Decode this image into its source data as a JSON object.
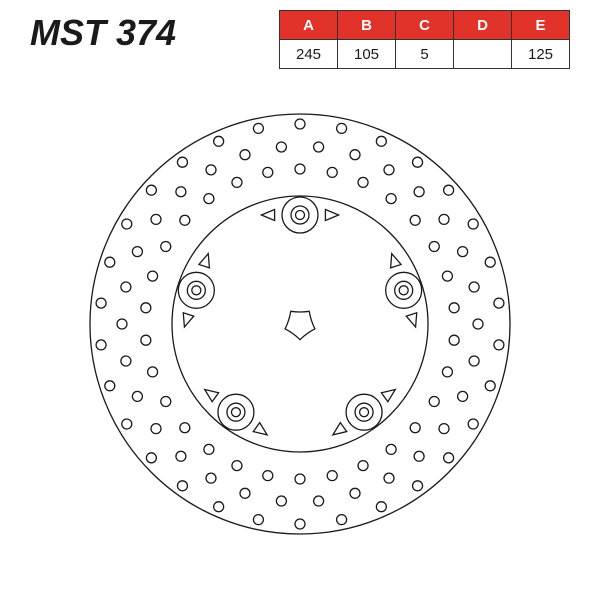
{
  "part_number": "MST 374",
  "table": {
    "header_bg": "#e2332b",
    "header_fg": "#ffffff",
    "cell_fg": "#1a1a1a",
    "columns": [
      "A",
      "B",
      "C",
      "D",
      "E"
    ],
    "values": [
      "245",
      "105",
      "5",
      "",
      "125"
    ]
  },
  "diagram": {
    "stroke": "#1a1a1a",
    "stroke_width": 1.3,
    "outer_radius": 210,
    "inner_edge_radius": 190,
    "carrier_outer_radius": 128,
    "lobe_radius": 62,
    "lobe_center_radius": 74,
    "bolt_circle_radius": 109,
    "bolt_outer_r": 18,
    "bolt_mid_r": 9,
    "bolt_inner_r": 4.5,
    "drill_radius": 5,
    "triangle_size": 11,
    "drill_rings": [
      {
        "r": 200,
        "count": 30,
        "phase": 6
      },
      {
        "r": 178,
        "count": 30,
        "phase": 0
      },
      {
        "r": 155,
        "count": 30,
        "phase": 6
      }
    ],
    "num_bolts": 5,
    "bolt_start_angle": -90
  }
}
